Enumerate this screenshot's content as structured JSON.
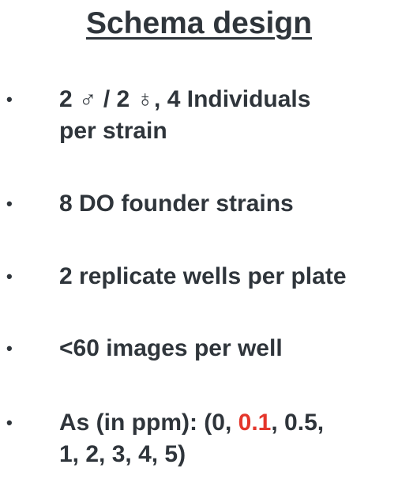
{
  "title": "Schema design",
  "bullet_glyph": "•",
  "bullets": [
    {
      "line1": "2 ♂ / 2 ♁, 4 Individuals",
      "line2": "per strain"
    },
    {
      "text": "8 DO founder strains"
    },
    {
      "text": "2 replicate wells per plate"
    },
    {
      "text": "<60 images per well"
    },
    {
      "prefix": "As (in ppm): (0, ",
      "highlight": "0.1",
      "suffix": ", 0.5,",
      "line2": "1, 2, 3, 4, 5)"
    }
  ],
  "colors": {
    "text": "#2f353b",
    "highlight": "#e4362b"
  }
}
